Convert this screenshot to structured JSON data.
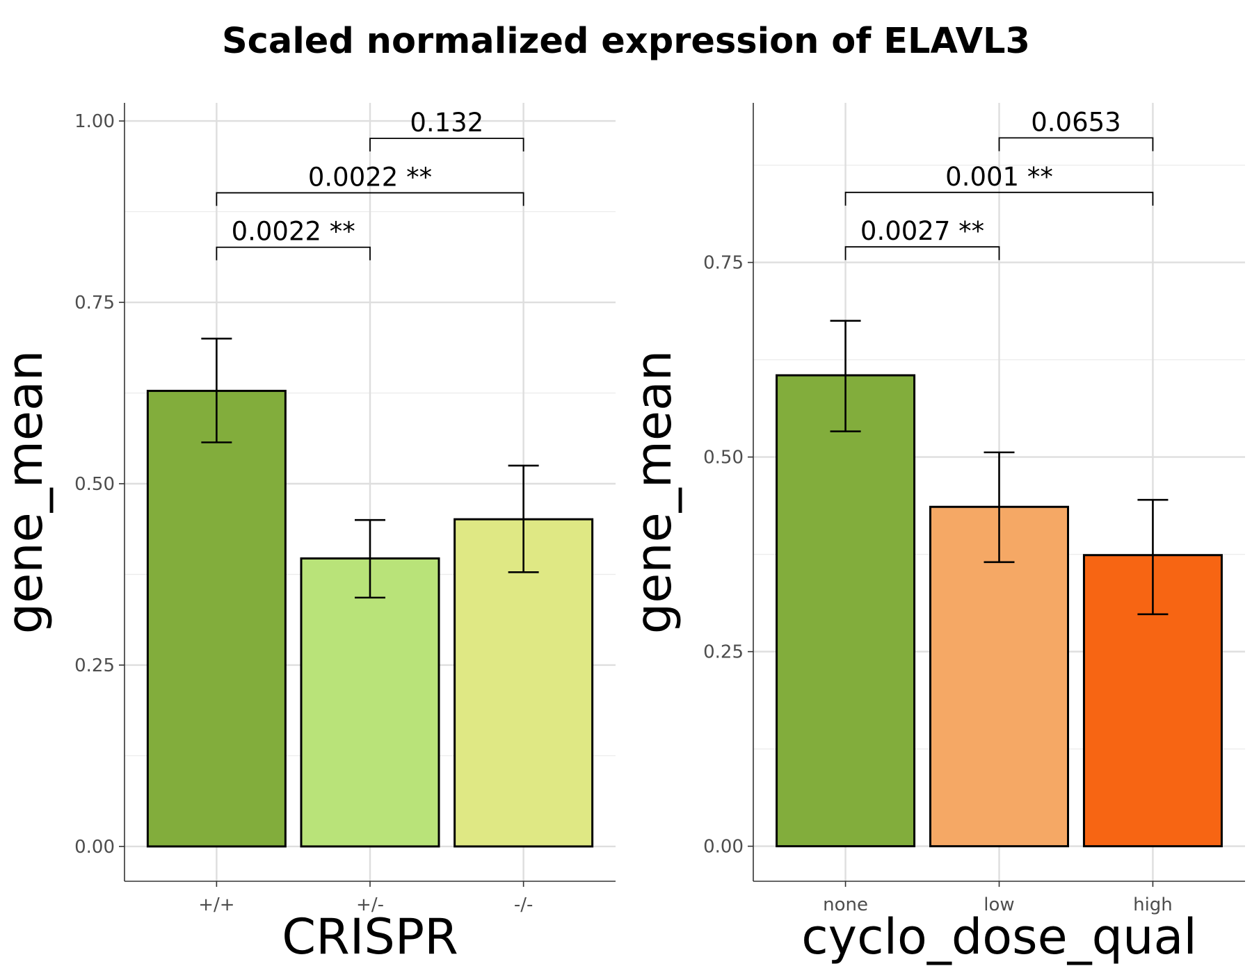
{
  "title": "Scaled normalized expression of ELAVL3",
  "chart_data": [
    {
      "type": "bar",
      "panel": "left",
      "xlabel": "CRISPR",
      "ylabel": "gene_mean",
      "ylim": [
        -0.048,
        1.025
      ],
      "yticks": [
        0.0,
        0.25,
        0.5,
        0.75,
        1.0
      ],
      "ytick_labels": [
        "0.00",
        "0.25",
        "0.50",
        "0.75",
        "1.00"
      ],
      "categories": [
        "+/+",
        "+/-",
        "-/-"
      ],
      "values": [
        0.628,
        0.397,
        0.451
      ],
      "error_low": [
        0.557,
        0.343,
        0.378
      ],
      "error_high": [
        0.7,
        0.45,
        0.525
      ],
      "colors": [
        "#82AD3C",
        "#B9E379",
        "#DFE884"
      ],
      "comparisons": [
        {
          "from": 0,
          "to": 1,
          "label": "0.0022 **",
          "y": 0.826,
          "tip": 0.018
        },
        {
          "from": 0,
          "to": 2,
          "label": "0.0022 **",
          "y": 0.901,
          "tip": 0.018
        },
        {
          "from": 1,
          "to": 2,
          "label": "0.132",
          "y": 0.976,
          "tip": 0.018
        }
      ]
    },
    {
      "type": "bar",
      "panel": "right",
      "xlabel": "cyclo_dose_qual",
      "ylabel": "gene_mean",
      "ylim": [
        -0.045,
        0.955
      ],
      "yticks": [
        0.0,
        0.25,
        0.5,
        0.75
      ],
      "ytick_labels": [
        "0.00",
        "0.25",
        "0.50",
        "0.75"
      ],
      "categories": [
        "none",
        "low",
        "high"
      ],
      "values": [
        0.605,
        0.436,
        0.374
      ],
      "error_low": [
        0.533,
        0.365,
        0.298
      ],
      "error_high": [
        0.675,
        0.506,
        0.445
      ],
      "colors": [
        "#82AD3C",
        "#F5A865",
        "#F76513"
      ],
      "comparisons": [
        {
          "from": 0,
          "to": 1,
          "label": "0.0027 **",
          "y": 0.77,
          "tip": 0.017
        },
        {
          "from": 0,
          "to": 2,
          "label": "0.001 **",
          "y": 0.84,
          "tip": 0.017
        },
        {
          "from": 1,
          "to": 2,
          "label": "0.0653",
          "y": 0.91,
          "tip": 0.017
        }
      ]
    }
  ]
}
